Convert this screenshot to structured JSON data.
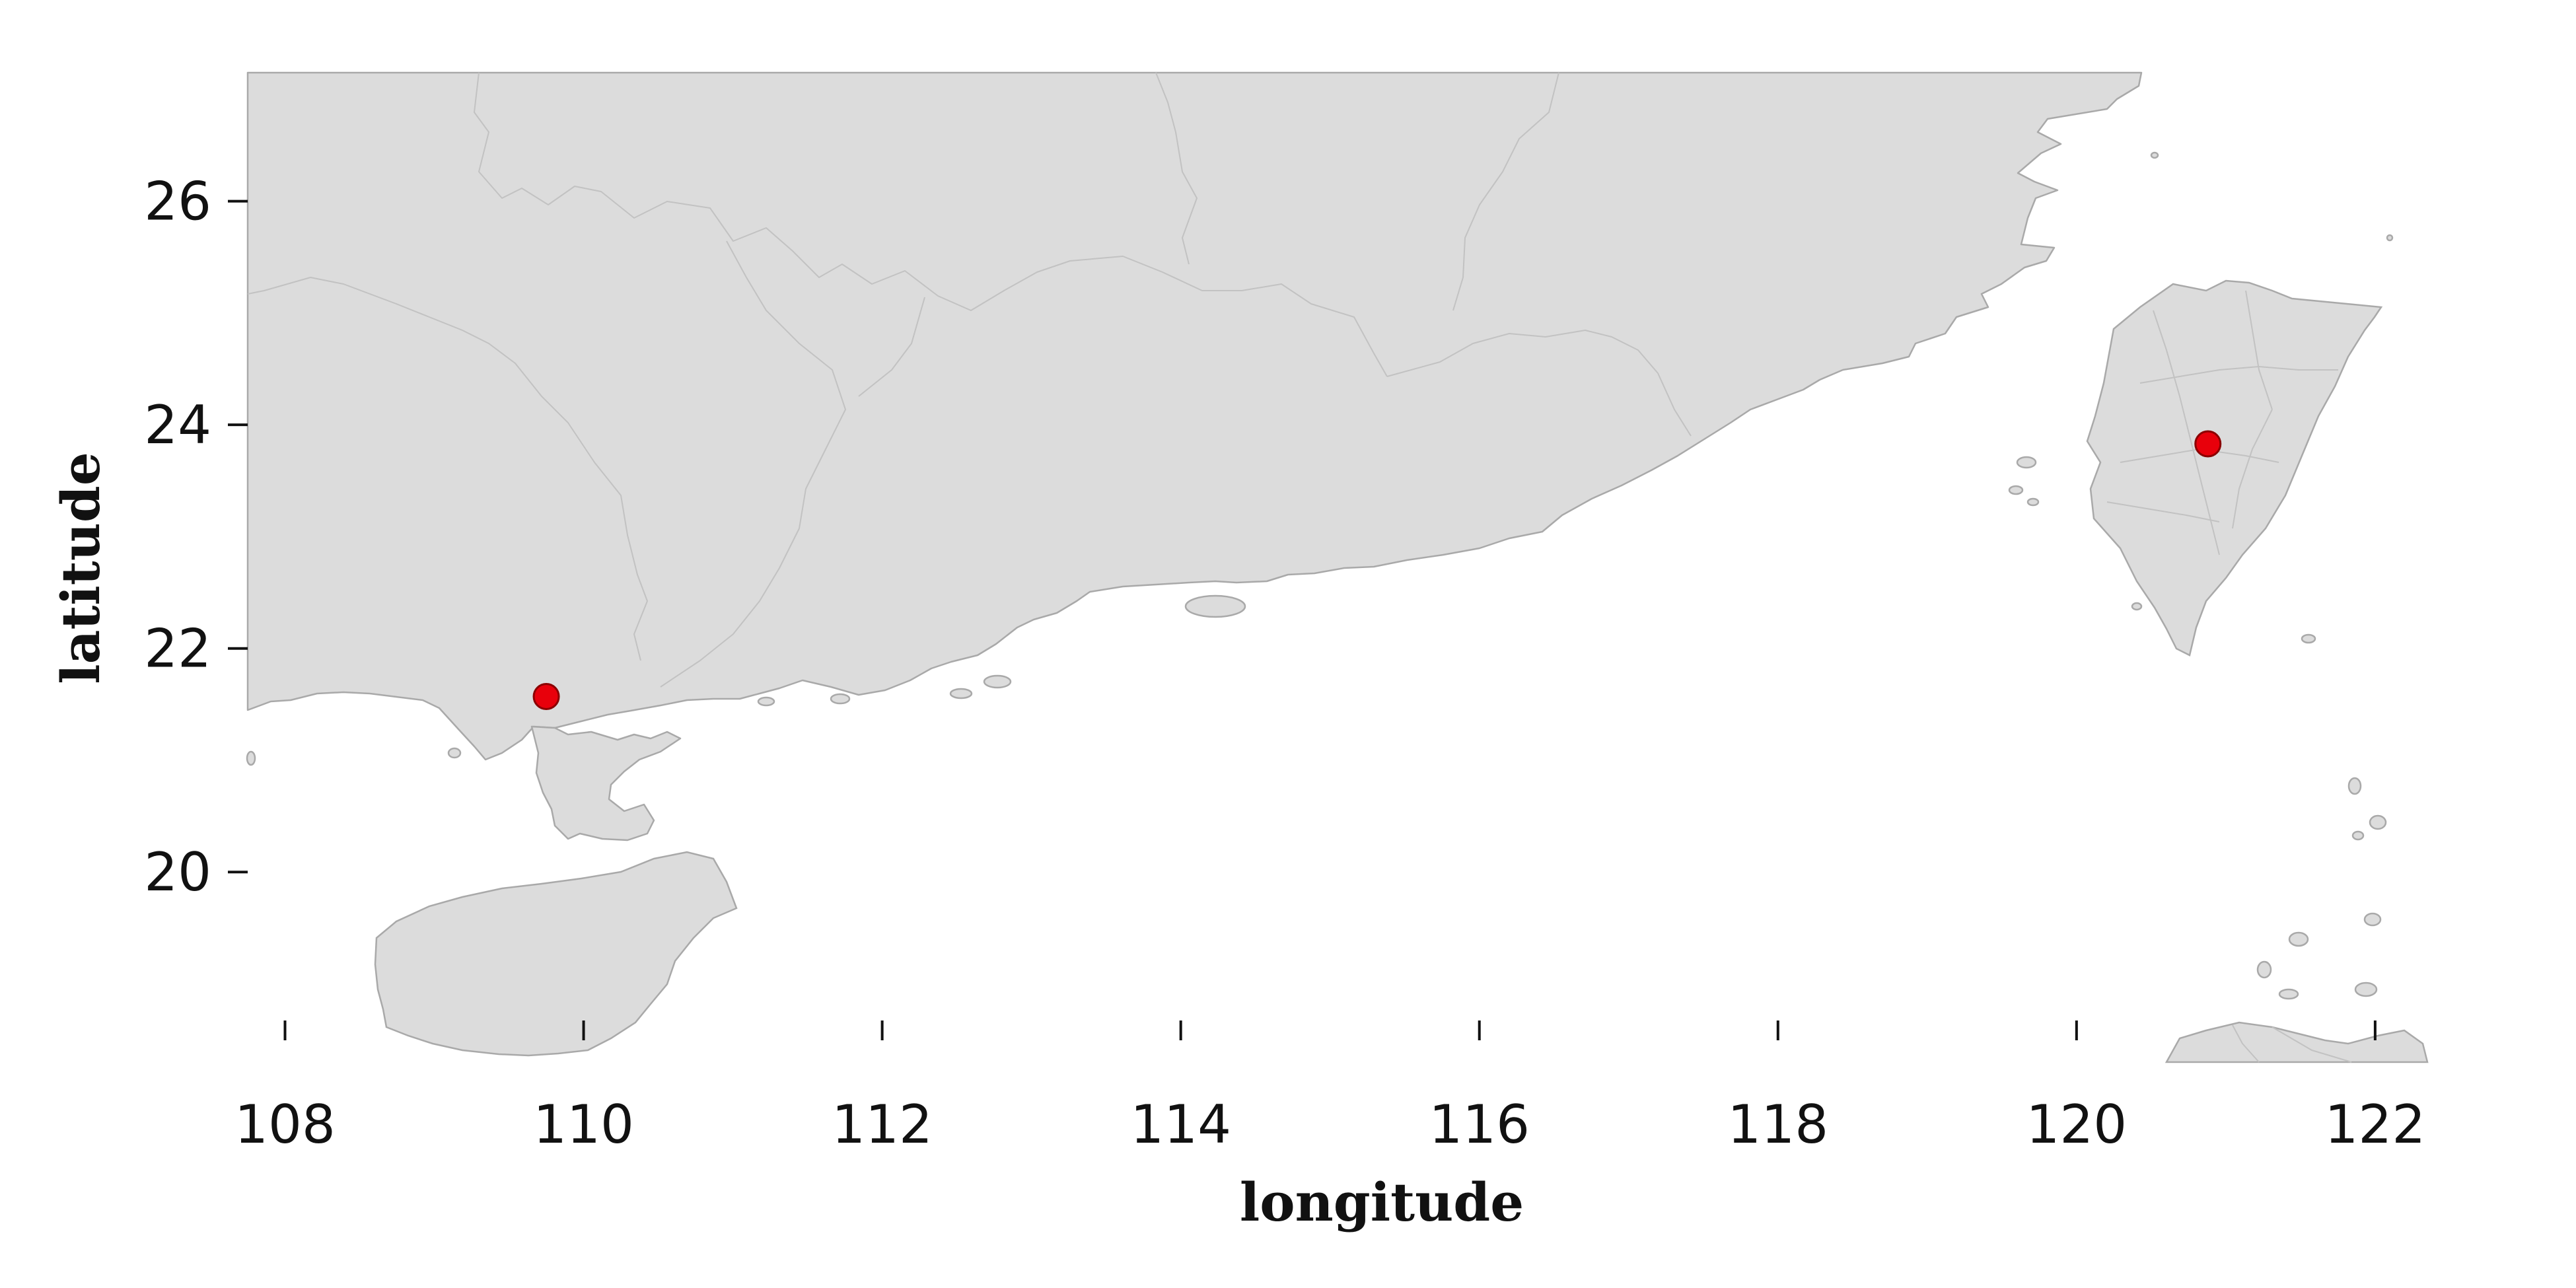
{
  "axes": {
    "x_label": "longitude",
    "y_label": "latitude",
    "x_range": [
      107.75,
      122.35
    ],
    "y_range": [
      18.3,
      27.15
    ],
    "x_ticks": [
      108,
      110,
      112,
      114,
      116,
      118,
      120,
      122
    ],
    "y_ticks": [
      20,
      22,
      24,
      26
    ]
  },
  "map": {
    "land_color": "#dcdcdc",
    "coastline_color": "#a9a9a9",
    "boundary_color": "#c2c2c2",
    "background": "#ffffff"
  },
  "markers": {
    "color": "#e8000b",
    "edge_color": "#8b0000",
    "points": [
      {
        "lon": 109.75,
        "lat": 21.57
      },
      {
        "lon": 120.88,
        "lat": 23.83
      }
    ]
  }
}
